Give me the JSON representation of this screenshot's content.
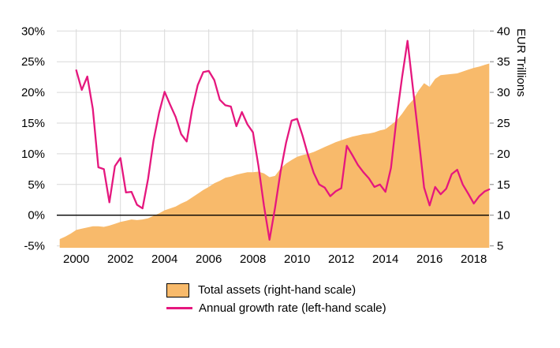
{
  "chart_data": {
    "type": "area",
    "title": "",
    "x_axis": {
      "tick_years": [
        2000,
        2002,
        2004,
        2006,
        2008,
        2010,
        2012,
        2014,
        2016,
        2018
      ]
    },
    "left_axis": {
      "unit": "%",
      "tick_values": [
        30,
        25,
        20,
        15,
        10,
        5,
        0,
        -5
      ],
      "tick_labels": [
        "30%",
        "25%",
        "20%",
        "15%",
        "10%",
        "5%",
        "0%",
        "-5%"
      ]
    },
    "right_axis": {
      "label": "EUR Trillions",
      "tick_values": [
        40,
        35,
        30,
        25,
        20,
        15,
        10,
        5
      ],
      "tick_labels": [
        "40",
        "35",
        "30",
        "25",
        "20",
        "15",
        "10",
        "5"
      ]
    },
    "zero_line": true,
    "grid": true,
    "legend_position": "bottom",
    "series": [
      {
        "name": "Total assets (right-hand scale)",
        "type": "area",
        "axis": "right",
        "color": "#f8ba6b",
        "x": [
          1999.25,
          1999.5,
          1999.75,
          2000.0,
          2000.25,
          2000.5,
          2000.75,
          2001.0,
          2001.25,
          2001.5,
          2001.75,
          2002.0,
          2002.25,
          2002.5,
          2002.75,
          2003.0,
          2003.25,
          2003.5,
          2003.75,
          2004.0,
          2004.25,
          2004.5,
          2004.75,
          2005.0,
          2005.25,
          2005.5,
          2005.75,
          2006.0,
          2006.25,
          2006.5,
          2006.75,
          2007.0,
          2007.25,
          2007.5,
          2007.75,
          2008.0,
          2008.25,
          2008.5,
          2008.75,
          2009.0,
          2009.25,
          2009.5,
          2009.75,
          2010.0,
          2010.25,
          2010.5,
          2010.75,
          2011.0,
          2011.25,
          2011.5,
          2011.75,
          2012.0,
          2012.25,
          2012.5,
          2012.75,
          2013.0,
          2013.25,
          2013.5,
          2013.75,
          2014.0,
          2014.25,
          2014.5,
          2014.75,
          2015.0,
          2015.25,
          2015.5,
          2015.75,
          2016.0,
          2016.25,
          2016.5,
          2016.75,
          2017.0,
          2017.25,
          2017.5,
          2017.75,
          2018.0,
          2018.25,
          2018.5,
          2018.7
        ],
        "values": [
          6.1,
          6.5,
          7.0,
          7.6,
          7.8,
          8.0,
          8.2,
          8.2,
          8.1,
          8.3,
          8.6,
          8.9,
          9.1,
          9.3,
          9.2,
          9.3,
          9.5,
          9.9,
          10.3,
          10.8,
          11.1,
          11.4,
          11.9,
          12.3,
          12.9,
          13.5,
          14.1,
          14.6,
          15.2,
          15.6,
          16.1,
          16.3,
          16.6,
          16.8,
          17.0,
          17.0,
          17.1,
          16.8,
          16.2,
          16.4,
          17.6,
          18.4,
          19.0,
          19.5,
          19.8,
          20.0,
          20.3,
          20.7,
          21.1,
          21.5,
          21.9,
          22.2,
          22.5,
          22.8,
          23.0,
          23.2,
          23.3,
          23.5,
          23.8,
          24.0,
          24.7,
          25.4,
          26.5,
          27.8,
          28.8,
          30.3,
          31.5,
          30.9,
          32.2,
          32.8,
          32.9,
          33.0,
          33.1,
          33.4,
          33.7,
          34.0,
          34.2,
          34.5,
          34.7
        ]
      },
      {
        "name": "Annual growth rate (left-hand scale)",
        "type": "line",
        "axis": "left",
        "color": "#e5177e",
        "x": [
          2000.0,
          2000.25,
          2000.5,
          2000.75,
          2001.0,
          2001.25,
          2001.5,
          2001.75,
          2002.0,
          2002.25,
          2002.5,
          2002.75,
          2003.0,
          2003.25,
          2003.5,
          2003.75,
          2004.0,
          2004.25,
          2004.5,
          2004.75,
          2005.0,
          2005.25,
          2005.5,
          2005.75,
          2006.0,
          2006.25,
          2006.5,
          2006.75,
          2007.0,
          2007.25,
          2007.5,
          2007.75,
          2008.0,
          2008.25,
          2008.5,
          2008.75,
          2009.0,
          2009.25,
          2009.5,
          2009.75,
          2010.0,
          2010.25,
          2010.5,
          2010.75,
          2011.0,
          2011.25,
          2011.5,
          2011.75,
          2012.0,
          2012.25,
          2012.5,
          2012.75,
          2013.0,
          2013.25,
          2013.5,
          2013.75,
          2014.0,
          2014.25,
          2014.5,
          2014.75,
          2015.0,
          2015.25,
          2015.5,
          2015.75,
          2016.0,
          2016.25,
          2016.5,
          2016.75,
          2017.0,
          2017.25,
          2017.5,
          2017.75,
          2018.0,
          2018.25,
          2018.5,
          2018.7
        ],
        "values": [
          23.6,
          20.4,
          22.6,
          17.3,
          7.8,
          7.5,
          2.1,
          8.0,
          9.3,
          3.7,
          3.8,
          1.7,
          1.1,
          5.9,
          12.2,
          16.7,
          20.1,
          18.0,
          16.0,
          13.2,
          12.0,
          17.3,
          21.2,
          23.3,
          23.5,
          22.0,
          18.8,
          17.9,
          17.7,
          14.5,
          16.8,
          14.8,
          13.5,
          8.0,
          1.5,
          -4.0,
          1.2,
          7.1,
          11.8,
          15.4,
          15.7,
          12.9,
          9.7,
          6.9,
          5.0,
          4.5,
          3.1,
          3.9,
          4.4,
          11.3,
          9.8,
          8.2,
          7.0,
          6.0,
          4.6,
          5.0,
          3.8,
          7.7,
          15.7,
          22.4,
          28.4,
          20.5,
          12.7,
          4.5,
          1.6,
          4.6,
          3.4,
          4.3,
          6.7,
          7.4,
          5.0,
          3.5,
          1.9,
          3.1,
          3.9,
          4.2
        ]
      }
    ]
  },
  "legend": {
    "items": [
      {
        "label": "Total assets (right-hand scale)",
        "swatch": "box",
        "color": "#f8ba6b"
      },
      {
        "label": "Annual growth rate (left-hand scale)",
        "swatch": "line",
        "color": "#e5177e"
      }
    ]
  },
  "colors": {
    "area": "#f8ba6b",
    "line": "#e5177e",
    "grid": "#d9d9d9",
    "zero_line": "#000000",
    "tick": "#808080",
    "text": "#000000"
  }
}
